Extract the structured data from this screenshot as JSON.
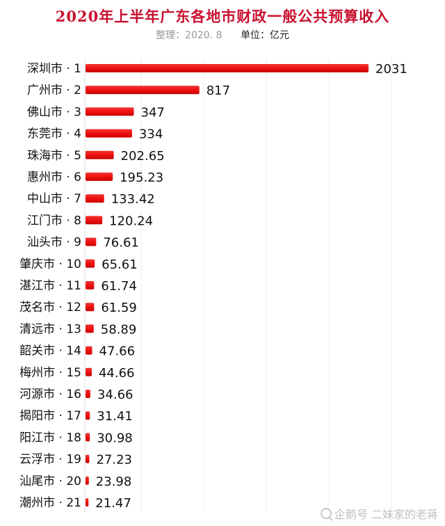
{
  "header": {
    "title": "2020年上半年广东各地市财政一般公共预算收入",
    "source_note": "整理：2020. 8",
    "unit_note": "单位：亿元"
  },
  "watermark": {
    "text": "企鹅号 二妹家的老蒋",
    "icon": "search-icon"
  },
  "colors": {
    "bar": "#ee1111",
    "bar_dark": "#c80000",
    "grid": "#eeeeee",
    "title": "#c8102e"
  },
  "chart_data": {
    "type": "bar",
    "orientation": "horizontal",
    "title": "2020年上半年广东各地市财政一般公共预算收入",
    "unit": "亿元",
    "grid": true,
    "categories": [
      "深圳市 · 1",
      "广州市 · 2",
      "佛山市 · 3",
      "东莞市 · 4",
      "珠海市 · 5",
      "惠州市 · 6",
      "中山市 · 7",
      "江门市 · 8",
      "汕头市 · 9",
      "肇庆市 · 10",
      "湛江市 · 11",
      "茂名市 · 12",
      "清远市 · 13",
      "韶关市 · 14",
      "梅州市 · 15",
      "河源市 · 16",
      "揭阳市 · 17",
      "阳江市 · 18",
      "云浮市 · 19",
      "汕尾市 · 20",
      "潮州市 · 21"
    ],
    "values": [
      2031,
      817,
      347,
      334,
      202.65,
      195.23,
      133.42,
      120.24,
      76.61,
      65.61,
      61.74,
      61.59,
      58.89,
      47.66,
      44.66,
      34.66,
      31.41,
      30.98,
      27.23,
      23.98,
      21.47
    ],
    "value_labels": [
      "2031",
      "817",
      "347",
      "334",
      "202.65",
      "195.23",
      "133.42",
      "120.24",
      "76.61",
      "65.61",
      "61.74",
      "61.59",
      "58.89",
      "47.66",
      "44.66",
      "34.66",
      "31.41",
      "30.98",
      "27.23",
      "23.98",
      "21.47"
    ]
  }
}
